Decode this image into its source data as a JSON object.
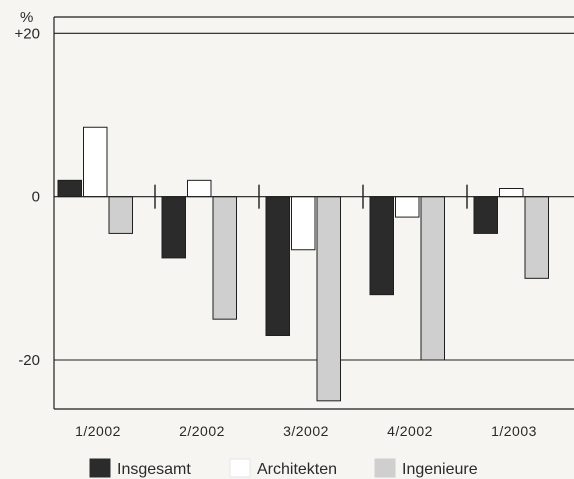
{
  "chart_data": {
    "type": "bar",
    "categories": [
      "1/2002",
      "2/2002",
      "3/2002",
      "4/2002",
      "1/2003"
    ],
    "series": [
      {
        "name": "Insgesamt",
        "values": [
          2,
          -7.5,
          -17,
          -12,
          -4.5
        ]
      },
      {
        "name": "Architekten",
        "values": [
          8.5,
          2,
          -6.5,
          -2.5,
          1
        ]
      },
      {
        "name": "Ingenieure",
        "values": [
          -4.5,
          -15,
          -25,
          -20,
          -10
        ]
      }
    ],
    "title": "",
    "xlabel": "",
    "ylabel": "%",
    "ylim": [
      -26,
      22
    ],
    "yticks": [
      {
        "value": 20,
        "label": "+20"
      },
      {
        "value": 0,
        "label": "0"
      },
      {
        "value": -20,
        "label": "-20"
      }
    ],
    "reference_lines": [
      20,
      -20
    ],
    "grid": false,
    "legend_position": "bottom"
  },
  "colors": {
    "Insgesamt": "#2b2b2b",
    "Architekten": "#ffffff",
    "Ingenieure": "#cfcfcf",
    "stroke": "#1e1e1e"
  }
}
